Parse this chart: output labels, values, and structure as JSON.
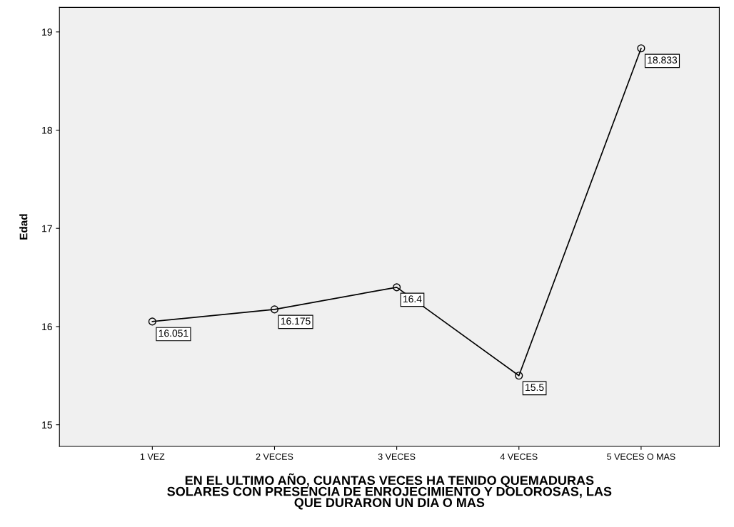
{
  "chart_data": {
    "type": "line",
    "xlabel": "EN EL ULTIMO AÑO, CUANTAS VECES HA TENIDO QUEMADURAS\nSOLARES CON PRESENCIA DE ENROJECIMIENTO Y DOLOROSAS, LAS\nQUE DURARON UN DIA O MAS",
    "ylabel": "Edad",
    "categories": [
      "1 VEZ",
      "2 VECES",
      "3 VECES",
      "4 VECES",
      "5 VECES O MAS"
    ],
    "series": [
      {
        "color": "#000000",
        "values": [
          16.051,
          16.175,
          16.4,
          15.5,
          18.833
        ]
      }
    ],
    "ylim": [
      14.78,
      19.25
    ],
    "yticks": [
      15,
      16,
      17,
      18,
      19
    ],
    "data_labels": true,
    "marker": "circle",
    "line_style": "solid",
    "grid": false,
    "legend": false
  }
}
